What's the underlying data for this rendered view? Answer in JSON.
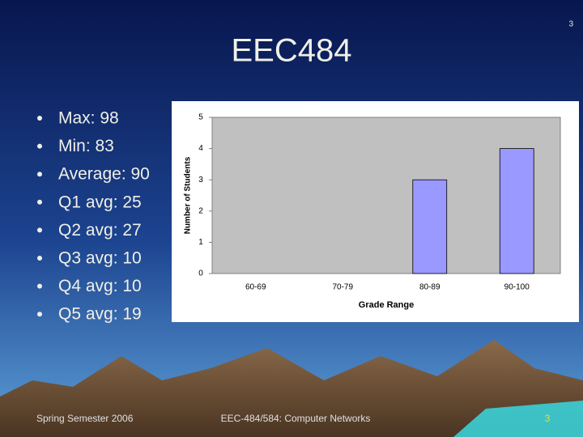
{
  "slide_number": "3",
  "title": "EEC484",
  "bullets": [
    "Max: 98",
    "Min: 83",
    "Average: 90",
    "Q1 avg: 25",
    "Q2 avg: 27",
    "Q3 avg: 10",
    "Q4 avg: 10",
    "Q5 avg: 19"
  ],
  "chart_data": {
    "type": "bar",
    "categories": [
      "60-69",
      "70-79",
      "80-89",
      "90-100"
    ],
    "values": [
      0,
      0,
      3,
      4
    ],
    "color": "#9999ff",
    "ylim": [
      0,
      5
    ],
    "yticks": [
      0,
      1,
      2,
      3,
      4,
      5
    ],
    "ylabel": "Number of Students",
    "xlabel": "Grade Range",
    "grid": false
  },
  "footer": {
    "left": "Spring Semester 2006",
    "center": "EEC-484/584: Computer Networks",
    "right": "3"
  }
}
